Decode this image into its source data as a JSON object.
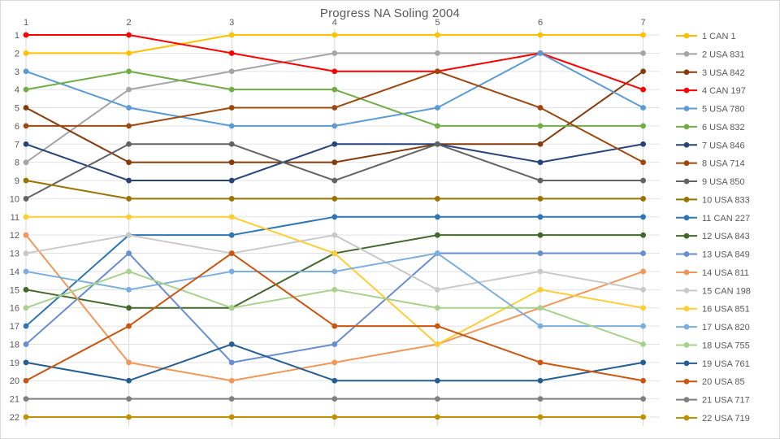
{
  "title": "Progress NA Soling 2004",
  "chart_data": {
    "type": "line",
    "subtype": "bump-rank-progress",
    "title": "Progress NA Soling 2004",
    "xlabel": "",
    "ylabel": "",
    "x": [
      1,
      2,
      3,
      4,
      5,
      6,
      7
    ],
    "x_tick_labels": [
      "1",
      "2",
      "3",
      "4",
      "5",
      "6",
      "7"
    ],
    "x_axis_position": "top",
    "y_tick_labels": [
      "1",
      "2",
      "3",
      "4",
      "5",
      "6",
      "7",
      "8",
      "9",
      "10",
      "11",
      "12",
      "13",
      "14",
      "15",
      "16",
      "17",
      "18",
      "19",
      "20",
      "21",
      "22"
    ],
    "ylim": [
      1,
      22
    ],
    "y_inverted": true,
    "grid": true,
    "gridline_color": "#D9D9D9",
    "text_color": "#595959",
    "background_color": "#FFFFFF",
    "border_color": "#D9D9D9",
    "legend_position": "right",
    "marker": "circle",
    "series": [
      {
        "rank": 1,
        "name": "1 CAN 1",
        "color": "#FFC000",
        "values": [
          2,
          2,
          1,
          1,
          1,
          1,
          1
        ]
      },
      {
        "rank": 2,
        "name": "2 USA 831",
        "color": "#A5A5A5",
        "values": [
          8,
          4,
          3,
          2,
          2,
          2,
          2
        ]
      },
      {
        "rank": 3,
        "name": "3 USA 842",
        "color": "#843C0C",
        "values": [
          5,
          8,
          8,
          8,
          7,
          7,
          3
        ]
      },
      {
        "rank": 4,
        "name": "4 CAN 197",
        "color": "#FF0000",
        "values": [
          1,
          1,
          2,
          3,
          3,
          2,
          4
        ]
      },
      {
        "rank": 5,
        "name": "5 USA 780",
        "color": "#5B9BD5",
        "values": [
          3,
          5,
          6,
          6,
          5,
          2,
          5
        ]
      },
      {
        "rank": 6,
        "name": "6 USA 832",
        "color": "#70AD47",
        "values": [
          4,
          3,
          4,
          4,
          6,
          6,
          6
        ]
      },
      {
        "rank": 7,
        "name": "7 USA 846",
        "color": "#264478",
        "values": [
          7,
          9,
          9,
          7,
          7,
          8,
          7
        ]
      },
      {
        "rank": 8,
        "name": "8 USA 714",
        "color": "#9E480E",
        "values": [
          6,
          6,
          5,
          5,
          3,
          5,
          8
        ]
      },
      {
        "rank": 9,
        "name": "9 USA 850",
        "color": "#636363",
        "values": [
          10,
          7,
          7,
          9,
          7,
          9,
          9
        ]
      },
      {
        "rank": 10,
        "name": "10 USA 833",
        "color": "#997300",
        "values": [
          9,
          10,
          10,
          10,
          10,
          10,
          10
        ]
      },
      {
        "rank": 11,
        "name": "11 CAN 227",
        "color": "#2E75B6",
        "values": [
          17,
          12,
          12,
          11,
          11,
          11,
          11
        ]
      },
      {
        "rank": 12,
        "name": "12 USA 843",
        "color": "#43682B",
        "values": [
          15,
          16,
          16,
          13,
          12,
          12,
          12
        ]
      },
      {
        "rank": 13,
        "name": "13 USA 849",
        "color": "#698ED0",
        "values": [
          18,
          13,
          19,
          18,
          13,
          13,
          13
        ]
      },
      {
        "rank": 14,
        "name": "14 USA 811",
        "color": "#F1975A",
        "values": [
          12,
          19,
          20,
          19,
          18,
          16,
          14
        ]
      },
      {
        "rank": 15,
        "name": "15 CAN 198",
        "color": "#C9C9C9",
        "values": [
          13,
          12,
          13,
          12,
          15,
          14,
          15
        ]
      },
      {
        "rank": 16,
        "name": "16 USA 851",
        "color": "#FFCD34",
        "values": [
          11,
          11,
          11,
          13,
          18,
          15,
          16
        ]
      },
      {
        "rank": 17,
        "name": "17 USA 820",
        "color": "#7CAFDD",
        "values": [
          14,
          15,
          14,
          14,
          13,
          17,
          17
        ]
      },
      {
        "rank": 18,
        "name": "18 USA 755",
        "color": "#A9D18E",
        "values": [
          16,
          14,
          16,
          15,
          16,
          16,
          18
        ]
      },
      {
        "rank": 19,
        "name": "19 USA 761",
        "color": "#255E91",
        "values": [
          19,
          20,
          18,
          20,
          20,
          20,
          19
        ]
      },
      {
        "rank": 20,
        "name": "20 USA 85",
        "color": "#CC5510",
        "values": [
          20,
          17,
          13,
          17,
          17,
          19,
          20
        ]
      },
      {
        "rank": 21,
        "name": "21 USA 717",
        "color": "#7F7F7F",
        "values": [
          21,
          21,
          21,
          21,
          21,
          21,
          21
        ]
      },
      {
        "rank": 22,
        "name": "22 USA 719",
        "color": "#BF9000",
        "values": [
          22,
          22,
          22,
          22,
          22,
          22,
          22
        ]
      }
    ]
  }
}
